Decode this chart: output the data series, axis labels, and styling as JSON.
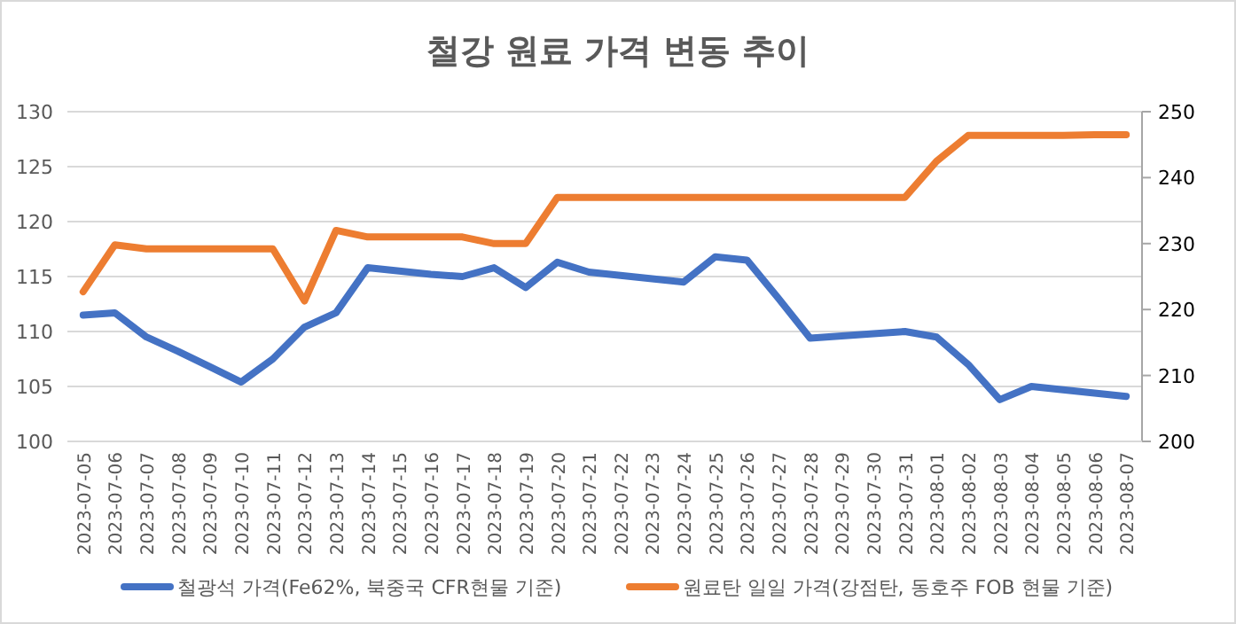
{
  "chart_data": {
    "type": "line",
    "title": "철강 원료 가격 변동 추이",
    "categories": [
      "2023-07-05",
      "2023-07-06",
      "2023-07-07",
      "2023-07-08",
      "2023-07-09",
      "2023-07-10",
      "2023-07-11",
      "2023-07-12",
      "2023-07-13",
      "2023-07-14",
      "2023-07-15",
      "2023-07-16",
      "2023-07-17",
      "2023-07-18",
      "2023-07-19",
      "2023-07-20",
      "2023-07-21",
      "2023-07-22",
      "2023-07-23",
      "2023-07-24",
      "2023-07-25",
      "2023-07-26",
      "2023-07-27",
      "2023-07-28",
      "2023-07-29",
      "2023-07-30",
      "2023-07-31",
      "2023-08-01",
      "2023-08-02",
      "2023-08-03",
      "2023-08-04",
      "2023-08-05",
      "2023-08-06",
      "2023-08-07"
    ],
    "series": [
      {
        "name": "철광석 가격(Fe62%, 북중국 CFR현물 기준)",
        "color": "#4472c4",
        "values": [
          111.5,
          111.7,
          109.5,
          108.2,
          106.8,
          105.4,
          107.5,
          110.4,
          111.7,
          115.8,
          115.5,
          115.2,
          115.0,
          115.8,
          114.0,
          116.3,
          115.4,
          115.1,
          114.8,
          114.5,
          116.8,
          116.5,
          113.0,
          109.4,
          109.6,
          109.8,
          110.0,
          109.5,
          107.0,
          103.8,
          105.0,
          104.7,
          104.4,
          104.1
        ]
      },
      {
        "name": "원료탄 일일 가격(강점탄, 동호주 FOB 현물 기준)",
        "color": "#ed7d31",
        "axis": "y2",
        "values": [
          222.7,
          229.8,
          229.2,
          229.2,
          229.2,
          229.2,
          229.2,
          221.3,
          232.0,
          231.0,
          231.0,
          231.0,
          231.0,
          230.0,
          230.0,
          237.0,
          237.0,
          237.0,
          237.0,
          237.0,
          237.0,
          237.0,
          237.0,
          237.0,
          237.0,
          237.0,
          237.0,
          242.5,
          246.4,
          246.4,
          246.4,
          246.4,
          246.5,
          246.5
        ]
      }
    ],
    "ylim": [
      100,
      130
    ],
    "yticks": [
      100,
      105,
      110,
      115,
      120,
      125,
      130
    ],
    "y2lim": [
      200,
      250
    ],
    "y2ticks": [
      200,
      210,
      220,
      230,
      240,
      250
    ],
    "grid": "y",
    "legend": "bottom",
    "marker": "none",
    "line_style": "solid"
  }
}
